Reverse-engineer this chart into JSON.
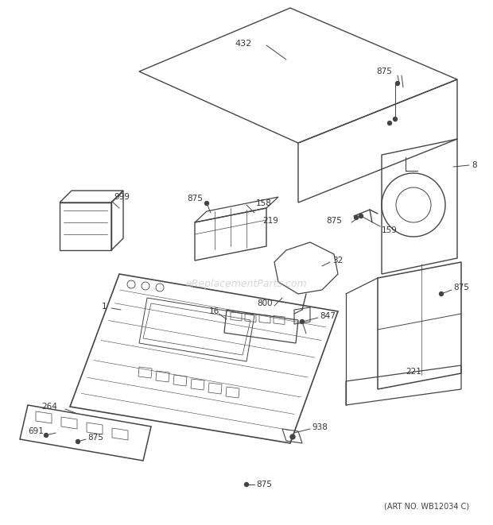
{
  "art_no": "(ART NO. WB12034 C)",
  "watermark": "eReplacementParts.com",
  "bg_color": "#ffffff",
  "line_color": "#444444",
  "text_color": "#333333",
  "figsize": [
    6.2,
    6.61
  ],
  "dpi": 100
}
